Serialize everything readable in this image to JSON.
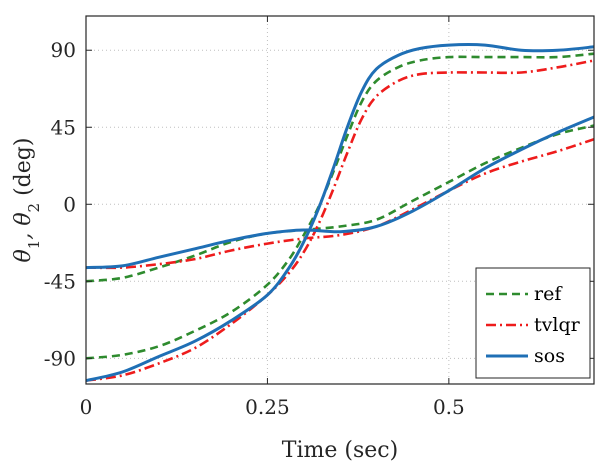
{
  "chart_data": {
    "type": "line",
    "xlabel": "Time (sec)",
    "ylabel_parts": [
      "θ",
      "1",
      ", θ",
      "2",
      " (deg)"
    ],
    "xlim": [
      0,
      0.7
    ],
    "ylim": [
      -105,
      110
    ],
    "xticks": [
      0,
      0.25,
      0.5
    ],
    "xtick_labels": [
      "0",
      "0.25",
      "0.5"
    ],
    "yticks": [
      -90,
      -45,
      0,
      45,
      90
    ],
    "ytick_labels": [
      "-90",
      "-45",
      "0",
      "45",
      "90"
    ],
    "grid": true,
    "legend_position": "bottom-right",
    "series": [
      {
        "name": "ref",
        "color": "#2e8b2e",
        "dash": "8,5",
        "curves": [
          [
            [
              0,
              -45
            ],
            [
              0.05,
              -43
            ],
            [
              0.1,
              -37
            ],
            [
              0.15,
              -30
            ],
            [
              0.2,
              -22
            ],
            [
              0.25,
              -17
            ],
            [
              0.3,
              -15
            ],
            [
              0.35,
              -13
            ],
            [
              0.4,
              -9
            ],
            [
              0.45,
              2
            ],
            [
              0.5,
              13
            ],
            [
              0.55,
              24
            ],
            [
              0.6,
              33
            ],
            [
              0.65,
              41
            ],
            [
              0.7,
              46
            ]
          ],
          [
            [
              0,
              -90
            ],
            [
              0.05,
              -88
            ],
            [
              0.1,
              -83
            ],
            [
              0.15,
              -74
            ],
            [
              0.2,
              -63
            ],
            [
              0.25,
              -47
            ],
            [
              0.28,
              -32
            ],
            [
              0.3,
              -18
            ],
            [
              0.32,
              -2
            ],
            [
              0.34,
              18
            ],
            [
              0.36,
              40
            ],
            [
              0.38,
              60
            ],
            [
              0.4,
              72
            ],
            [
              0.43,
              80
            ],
            [
              0.46,
              84
            ],
            [
              0.5,
              86
            ],
            [
              0.55,
              86
            ],
            [
              0.6,
              86
            ],
            [
              0.65,
              86
            ],
            [
              0.7,
              88
            ]
          ]
        ]
      },
      {
        "name": "tvlqr",
        "color": "#ee1c1c",
        "dash": "10,4,2,4",
        "curves": [
          [
            [
              0,
              -37
            ],
            [
              0.05,
              -37
            ],
            [
              0.1,
              -35
            ],
            [
              0.15,
              -32
            ],
            [
              0.2,
              -27
            ],
            [
              0.25,
              -23
            ],
            [
              0.3,
              -20
            ],
            [
              0.35,
              -18
            ],
            [
              0.4,
              -13
            ],
            [
              0.45,
              -3
            ],
            [
              0.5,
              8
            ],
            [
              0.55,
              18
            ],
            [
              0.6,
              25
            ],
            [
              0.65,
              31
            ],
            [
              0.7,
              38
            ]
          ],
          [
            [
              0,
              -103
            ],
            [
              0.05,
              -100
            ],
            [
              0.1,
              -93
            ],
            [
              0.15,
              -84
            ],
            [
              0.2,
              -70
            ],
            [
              0.25,
              -53
            ],
            [
              0.28,
              -40
            ],
            [
              0.3,
              -28
            ],
            [
              0.32,
              -12
            ],
            [
              0.34,
              8
            ],
            [
              0.36,
              30
            ],
            [
              0.38,
              50
            ],
            [
              0.4,
              63
            ],
            [
              0.43,
              72
            ],
            [
              0.46,
              76
            ],
            [
              0.5,
              77
            ],
            [
              0.55,
              77
            ],
            [
              0.6,
              77
            ],
            [
              0.65,
              80
            ],
            [
              0.7,
              84
            ]
          ]
        ]
      },
      {
        "name": "sos",
        "color": "#1f6fb5",
        "dash": "",
        "curves": [
          [
            [
              0,
              -37
            ],
            [
              0.05,
              -36
            ],
            [
              0.1,
              -31
            ],
            [
              0.15,
              -26
            ],
            [
              0.2,
              -21
            ],
            [
              0.25,
              -17
            ],
            [
              0.3,
              -15
            ],
            [
              0.35,
              -16
            ],
            [
              0.4,
              -13
            ],
            [
              0.45,
              -4
            ],
            [
              0.5,
              8
            ],
            [
              0.55,
              21
            ],
            [
              0.6,
              32
            ],
            [
              0.65,
              42
            ],
            [
              0.7,
              51
            ]
          ],
          [
            [
              0,
              -103
            ],
            [
              0.05,
              -98
            ],
            [
              0.1,
              -89
            ],
            [
              0.15,
              -80
            ],
            [
              0.2,
              -68
            ],
            [
              0.25,
              -53
            ],
            [
              0.28,
              -37
            ],
            [
              0.3,
              -22
            ],
            [
              0.32,
              -3
            ],
            [
              0.34,
              20
            ],
            [
              0.36,
              45
            ],
            [
              0.38,
              66
            ],
            [
              0.4,
              79
            ],
            [
              0.43,
              87
            ],
            [
              0.46,
              91
            ],
            [
              0.5,
              93
            ],
            [
              0.55,
              93
            ],
            [
              0.6,
              90
            ],
            [
              0.65,
              90
            ],
            [
              0.7,
              92
            ]
          ]
        ]
      }
    ]
  }
}
